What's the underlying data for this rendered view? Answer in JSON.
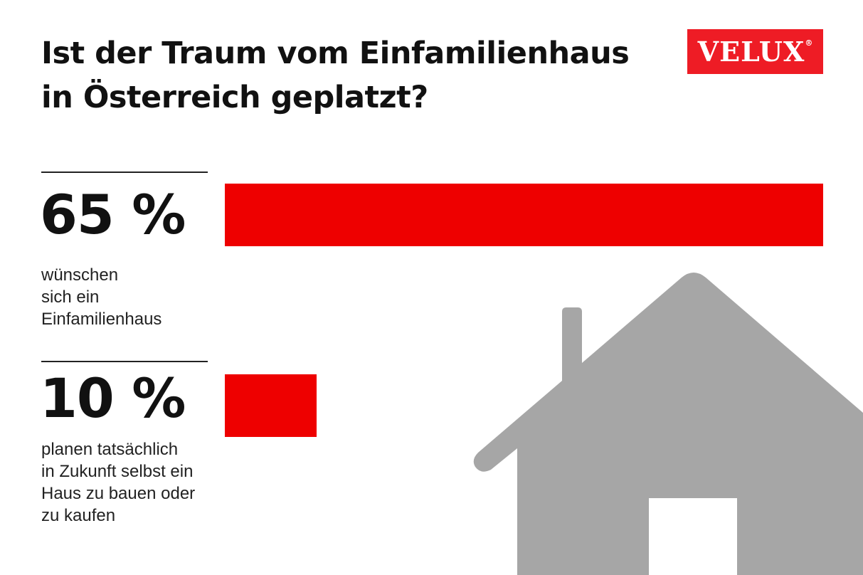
{
  "title": [
    "Ist der Traum vom Einfamilienhaus",
    "in Österreich geplatzt?"
  ],
  "logo": {
    "text": "VELUX",
    "mark": "®",
    "color": "#ee1c25"
  },
  "chart_data": {
    "type": "bar",
    "orientation": "horizontal",
    "categories": [
      "wünschen sich ein Einfamilienhaus",
      "planen tatsächlich in Zukunft selbst ein Haus zu bauen oder zu kaufen"
    ],
    "values": [
      65,
      10
    ],
    "unit": "%",
    "xlim": [
      0,
      65
    ],
    "bar_color": "#ee0000",
    "grid": false,
    "legend": "none"
  },
  "stats": [
    {
      "value_label": "65 %",
      "desc_lines": [
        "wünschen",
        "sich ein",
        "Einfamilienhaus"
      ]
    },
    {
      "value_label": "10 %",
      "desc_lines": [
        "planen tatsächlich",
        "in Zukunft selbst ein",
        "Haus zu bauen oder",
        "zu kaufen"
      ]
    }
  ],
  "illustration": {
    "icon": "house-icon",
    "color": "#a6a6a6"
  }
}
